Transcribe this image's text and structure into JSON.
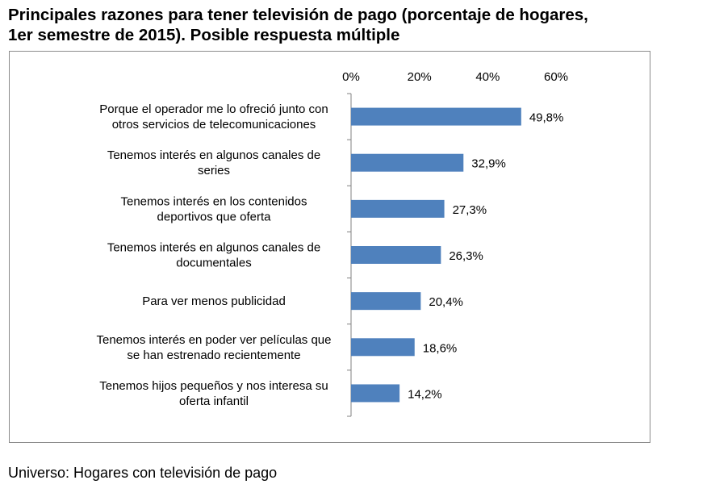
{
  "title_line1": "Principales razones para tener televisión de pago (porcentaje de hogares,",
  "title_line2": "1er semestre de 2015). Posible respuesta múltiple",
  "footnote": "Universo: Hogares con televisión de pago",
  "chart_data": {
    "type": "bar",
    "orientation": "horizontal",
    "xlim": [
      0,
      60
    ],
    "x_ticks": [
      "0%",
      "20%",
      "40%",
      "60%"
    ],
    "x_tick_values": [
      0,
      20,
      40,
      60
    ],
    "grid": false,
    "bar_color": "#4f81bd",
    "categories": [
      [
        "Porque el operador me lo ofreció junto con",
        "otros servicios de telecomunicaciones"
      ],
      [
        "Tenemos interés en algunos canales de",
        "series"
      ],
      [
        "Tenemos interés en los contenidos",
        "deportivos que oferta"
      ],
      [
        "Tenemos interés en algunos canales de",
        "documentales"
      ],
      [
        "Para ver menos publicidad"
      ],
      [
        "Tenemos interés en poder ver películas que",
        "se han estrenado recientemente"
      ],
      [
        "Tenemos hijos pequeños y nos interesa su",
        "oferta infantil"
      ]
    ],
    "values": [
      49.8,
      32.9,
      27.3,
      26.3,
      20.4,
      18.6,
      14.2
    ],
    "value_labels": [
      "49,8%",
      "32,9%",
      "27,3%",
      "26,3%",
      "20,4%",
      "18,6%",
      "14,2%"
    ]
  }
}
